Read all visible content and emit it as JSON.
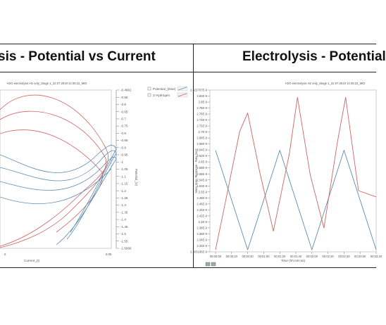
{
  "left_title": "sis - Potential vs Current",
  "right_title": "Electrolysis - Potential",
  "colors": {
    "blue": "#5b8db3",
    "red": "#d06464",
    "rule": "#222222"
  },
  "chart_data": [
    {
      "type": "line",
      "title": "H2O electrolysis H2 only_Stage 1_22.07.2019 14:35:22_MID",
      "xlabel": "Current_(I)",
      "ylabel": "Potential_(V)",
      "x_ticks": [
        "0",
        "0.05"
      ],
      "yticks": [
        "-0.4961",
        "-0.55",
        "-0.6",
        "-0.65",
        "-0.7",
        "-0.75",
        "-0.8",
        "-0.85",
        "-0.9",
        "-0.95",
        "-1",
        "-1.05",
        "-1.1",
        "-1.15",
        "-1.2",
        "-1.25",
        "-1.3",
        "-1.35",
        "-1.4",
        "-1.45",
        "-1.5",
        "-1.55",
        "-1.5966"
      ],
      "ylim": [
        -1.5966,
        -0.4961
      ],
      "legend": [
        "Potential_(Ewe)",
        "Z Hydrogen"
      ],
      "legend_position": "top-right"
    },
    {
      "type": "line",
      "title": "H2O electrolysis H2 only_Stage 1_22.07.2019 14:35:22_MID",
      "xlabel": "Time (hh:mm:ss)",
      "ylabel": "Mass Spec Response - Raw (torr)",
      "yticks": [
        "2.823707E-9",
        "2.82E-9",
        "2.8E-9",
        "2.78E-9",
        "2.76E-9",
        "2.74E-9",
        "2.72E-9",
        "2.7E-9",
        "2.68E-9",
        "2.66E-9",
        "2.64E-9",
        "2.62E-9",
        "2.6E-9",
        "2.58E-9",
        "2.56E-9",
        "2.54E-9",
        "2.52E-9",
        "2.5E-9",
        "2.48E-9",
        "2.46E-9",
        "2.44E-9",
        "2.42E-9",
        "2.4E-9",
        "2.38E-9",
        "2.36E-9",
        "2.34E-9",
        "2.32E-9",
        "2.303195E-9"
      ],
      "ylim": [
        2.303195e-09,
        2.823707e-09
      ],
      "x_ticks": [
        "00:00:00",
        "00:00:20",
        "00:00:40",
        "00:01:00",
        "00:01:20",
        "00:01:40",
        "00:02:00",
        "00:02:20",
        "00:02:40",
        "00:03:00",
        "00:03:20"
      ],
      "series": [
        {
          "color": "blue",
          "x_sec": [
            0,
            40,
            80,
            120,
            160,
            200
          ],
          "values": [
            2.63e-09,
            2.31e-09,
            2.63e-09,
            2.31e-09,
            2.63e-09,
            2.31e-09
          ]
        },
        {
          "color": "red",
          "x_sec": [
            0,
            12,
            30,
            40,
            55,
            72,
            92,
            102,
            118,
            135,
            152,
            162,
            178,
            200
          ],
          "values": [
            2.31e-09,
            2.46e-09,
            2.69e-09,
            2.75e-09,
            2.56e-09,
            2.37e-09,
            2.62e-09,
            2.8e-09,
            2.55e-09,
            2.38e-09,
            2.66e-09,
            2.8e-09,
            2.5e-09,
            2.48e-09
          ]
        }
      ]
    }
  ]
}
